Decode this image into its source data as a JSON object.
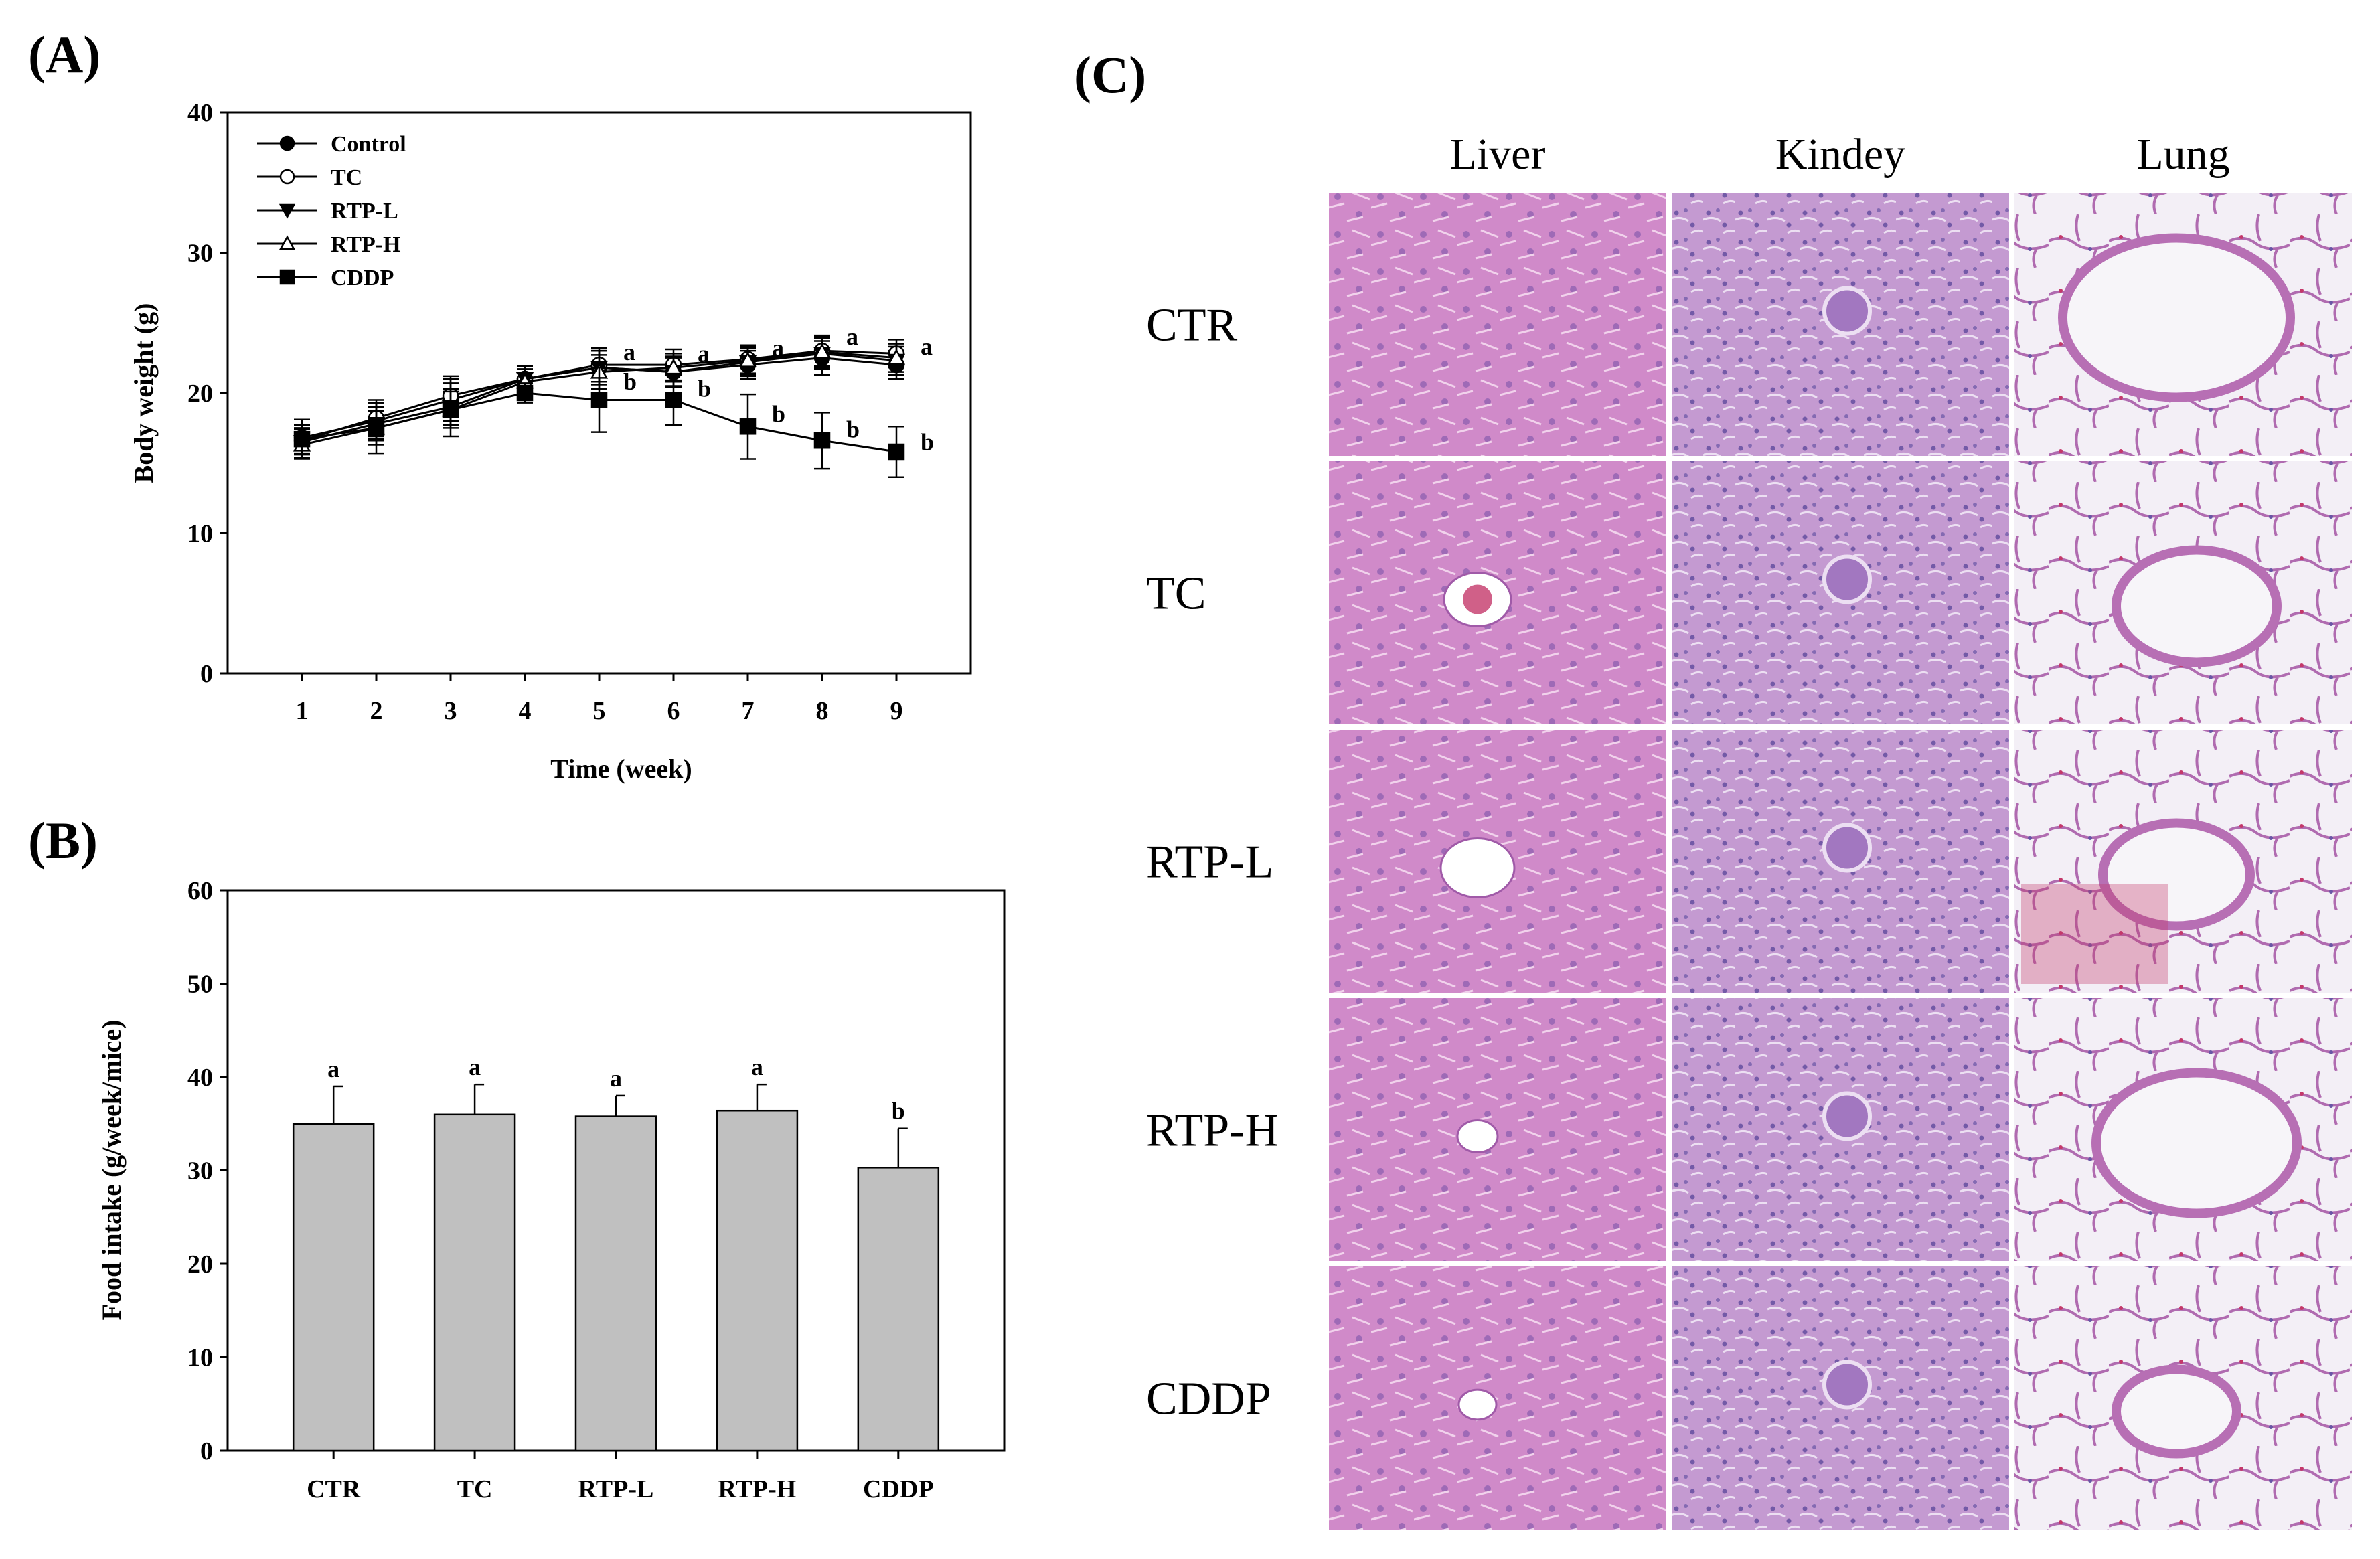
{
  "panel_labels": {
    "a": "(A)",
    "b": "(B)",
    "c": "(C)"
  },
  "chart_data": [
    {
      "type": "line",
      "panel": "(A)",
      "xlabel": "Time (week)",
      "ylabel": "Body weight (g)",
      "x": [
        1,
        2,
        3,
        4,
        5,
        6,
        7,
        8,
        9
      ],
      "xlim": [
        0,
        10
      ],
      "ylim": [
        0,
        40
      ],
      "yticks": [
        0,
        10,
        20,
        30,
        40
      ],
      "legend_position": "top-left",
      "series": [
        {
          "name": "Control",
          "marker": "circle-filled",
          "values": [
            16.8,
            18.0,
            19.5,
            21.0,
            21.8,
            21.5,
            22.0,
            22.5,
            22.0
          ],
          "errors": [
            0.9,
            1.3,
            1.5,
            0.9,
            1.2,
            1.1,
            1.0,
            1.2,
            1.0
          ]
        },
        {
          "name": "TC",
          "marker": "circle-open",
          "values": [
            16.6,
            18.2,
            19.8,
            21.0,
            22.0,
            22.0,
            22.4,
            23.0,
            22.8
          ],
          "errors": [
            0.9,
            1.3,
            1.4,
            0.9,
            1.2,
            1.1,
            1.0,
            1.1,
            1.0
          ]
        },
        {
          "name": "RTP-L",
          "marker": "triangle-down-filled",
          "values": [
            16.5,
            17.8,
            19.0,
            21.0,
            21.8,
            21.5,
            22.2,
            22.8,
            22.3
          ],
          "errors": [
            0.9,
            1.2,
            1.3,
            0.9,
            1.2,
            1.0,
            1.0,
            1.1,
            1.0
          ]
        },
        {
          "name": "RTP-H",
          "marker": "triangle-up-open",
          "values": [
            16.3,
            17.5,
            18.8,
            20.8,
            21.5,
            21.8,
            22.3,
            22.9,
            22.5
          ],
          "errors": [
            0.9,
            1.2,
            1.3,
            0.9,
            1.2,
            1.0,
            1.0,
            1.1,
            1.0
          ]
        },
        {
          "name": "CDDP",
          "marker": "square-filled",
          "values": [
            16.7,
            17.5,
            18.8,
            20.0,
            19.5,
            19.5,
            17.6,
            16.6,
            15.8
          ],
          "errors": [
            1.4,
            1.8,
            1.9,
            0.7,
            2.3,
            1.8,
            2.3,
            2.0,
            1.8
          ]
        }
      ],
      "annotations": [
        {
          "x": 5,
          "y": 22.9,
          "text": "a"
        },
        {
          "x": 5,
          "y": 20.8,
          "text": "b"
        },
        {
          "x": 6,
          "y": 22.8,
          "text": "a"
        },
        {
          "x": 6,
          "y": 20.3,
          "text": "b"
        },
        {
          "x": 7,
          "y": 23.2,
          "text": "a"
        },
        {
          "x": 7,
          "y": 18.5,
          "text": "b"
        },
        {
          "x": 8,
          "y": 24.0,
          "text": "a"
        },
        {
          "x": 8,
          "y": 17.4,
          "text": "b"
        },
        {
          "x": 9,
          "y": 23.3,
          "text": "a"
        },
        {
          "x": 9,
          "y": 16.5,
          "text": "b"
        }
      ]
    },
    {
      "type": "bar",
      "panel": "(B)",
      "xlabel": "",
      "ylabel": "Food intake (g/week/mice)",
      "categories": [
        "CTR",
        "TC",
        "RTP-L",
        "RTP-H",
        "CDDP"
      ],
      "values": [
        35.0,
        36.0,
        35.8,
        36.4,
        30.3
      ],
      "errors": [
        4.0,
        3.2,
        2.2,
        2.8,
        4.2
      ],
      "labels": [
        "a",
        "a",
        "a",
        "a",
        "b"
      ],
      "ylim": [
        0,
        60
      ],
      "yticks": [
        0,
        10,
        20,
        30,
        40,
        50,
        60
      ],
      "bar_color": "#c0c0c0"
    }
  ],
  "histology": {
    "columns": [
      "Liver",
      "Kindey",
      "Lung"
    ],
    "rows": [
      "CTR",
      "TC",
      "RTP-L",
      "RTP-H",
      "CDDP"
    ],
    "colors": {
      "liver": "#cf86c8",
      "kidney": "#c79ad2",
      "lung_bg": "#f2eef5",
      "lung_tissue": "#b76fb4",
      "blood": "#c4386a"
    }
  }
}
